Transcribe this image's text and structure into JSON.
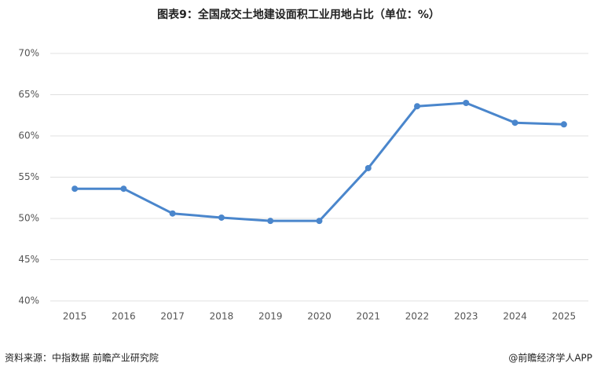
{
  "chart_data": {
    "type": "line",
    "title": "图表9：全国成交土地建设面积工业用地占比（单位：%）",
    "categories": [
      "2015",
      "2016",
      "2017",
      "2018",
      "2019",
      "2020",
      "2021",
      "2022",
      "2023",
      "2024",
      "2025"
    ],
    "series": [
      {
        "color": "#4a86cc",
        "values": [
          53.6,
          53.6,
          50.6,
          50.1,
          49.7,
          49.7,
          56.1,
          63.6,
          64.0,
          61.6,
          61.4
        ]
      }
    ],
    "ylim": [
      40,
      70
    ],
    "yticks": [
      {
        "value": 40,
        "label": "40%"
      },
      {
        "value": 45,
        "label": "45%"
      },
      {
        "value": 50,
        "label": "50%"
      },
      {
        "value": 55,
        "label": "55%"
      },
      {
        "value": 60,
        "label": "60%"
      },
      {
        "value": 65,
        "label": "65%"
      },
      {
        "value": 70,
        "label": "70%"
      }
    ],
    "grid": true,
    "source": "资料来源：中指数据  前瞻产业研究院",
    "credit": "@前瞻经济学人APP"
  }
}
